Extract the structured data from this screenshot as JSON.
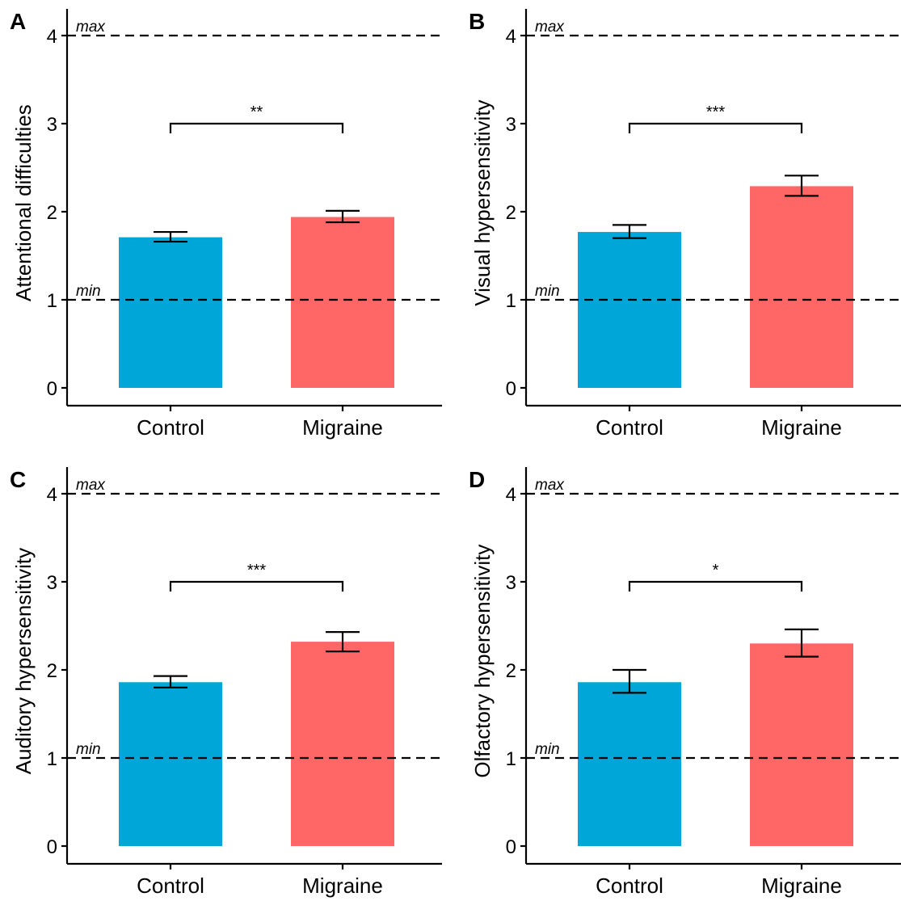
{
  "colors": {
    "control": "#00A6D7",
    "migraine": "#FF6666",
    "axis": "#000000"
  },
  "chart_data": [
    {
      "panel": "A",
      "type": "bar",
      "categories": [
        "Control",
        "Migraine"
      ],
      "values": [
        1.71,
        1.94
      ],
      "error": [
        [
          1.66,
          1.77
        ],
        [
          1.88,
          2.01
        ]
      ],
      "ylabel": "Attentional difficulties",
      "ylim": [
        0,
        4.3
      ],
      "yticks": [
        "0",
        "1",
        "2",
        "3",
        "4"
      ],
      "reference_lines": [
        {
          "y": 4,
          "label": "max"
        },
        {
          "y": 1,
          "label": "min"
        }
      ],
      "significance": {
        "y": 3,
        "label": "**"
      },
      "grid": false
    },
    {
      "panel": "B",
      "type": "bar",
      "categories": [
        "Control",
        "Migraine"
      ],
      "values": [
        1.77,
        2.29
      ],
      "error": [
        [
          1.7,
          1.85
        ],
        [
          2.18,
          2.41
        ]
      ],
      "ylabel": "Visual hypersensitivity",
      "ylim": [
        0,
        4.3
      ],
      "yticks": [
        "0",
        "1",
        "2",
        "3",
        "4"
      ],
      "reference_lines": [
        {
          "y": 4,
          "label": "max"
        },
        {
          "y": 1,
          "label": "min"
        }
      ],
      "significance": {
        "y": 3,
        "label": "***"
      },
      "grid": false
    },
    {
      "panel": "C",
      "type": "bar",
      "categories": [
        "Control",
        "Migraine"
      ],
      "values": [
        1.86,
        2.32
      ],
      "error": [
        [
          1.8,
          1.93
        ],
        [
          2.21,
          2.43
        ]
      ],
      "ylabel": "Auditory hypersensitivity",
      "ylim": [
        0,
        4.3
      ],
      "yticks": [
        "0",
        "1",
        "2",
        "3",
        "4"
      ],
      "reference_lines": [
        {
          "y": 4,
          "label": "max"
        },
        {
          "y": 1,
          "label": "min"
        }
      ],
      "significance": {
        "y": 3,
        "label": "***"
      },
      "grid": false
    },
    {
      "panel": "D",
      "type": "bar",
      "categories": [
        "Control",
        "Migraine"
      ],
      "values": [
        1.86,
        2.3
      ],
      "error": [
        [
          1.74,
          2.0
        ],
        [
          2.15,
          2.46
        ]
      ],
      "ylabel": "Olfactory hypersensitivity",
      "ylim": [
        0,
        4.3
      ],
      "yticks": [
        "0",
        "1",
        "2",
        "3",
        "4"
      ],
      "reference_lines": [
        {
          "y": 4,
          "label": "max"
        },
        {
          "y": 1,
          "label": "min"
        }
      ],
      "significance": {
        "y": 3,
        "label": "*"
      },
      "grid": false
    }
  ]
}
